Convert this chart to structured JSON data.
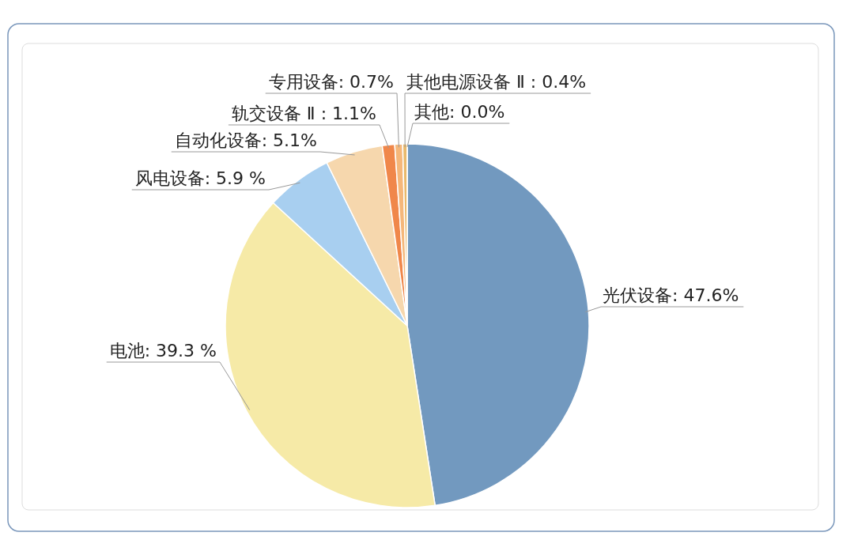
{
  "chart_data": {
    "type": "pie",
    "categories": [
      "光伏设备",
      "电池",
      "风电设备",
      "自动化设备",
      "轨交设备 Ⅱ",
      "专用设备",
      "其他电源设备 Ⅱ",
      "其他"
    ],
    "values": [
      47.6,
      39.3,
      5.9,
      5.1,
      1.1,
      0.7,
      0.4,
      0.0
    ],
    "value_labels": [
      ": 47.6%",
      ": 39.3 %",
      ": 5.9 %",
      ": 5.1%",
      " : 1.1%",
      ": 0.7%",
      " : 0.4%",
      ": 0.0%"
    ],
    "colors": [
      "#7299bf",
      "#f6eaa7",
      "#a8cff0",
      "#f6d7ad",
      "#f0874a",
      "#f5b77a",
      "#e9b96b",
      "#f2d496"
    ]
  }
}
